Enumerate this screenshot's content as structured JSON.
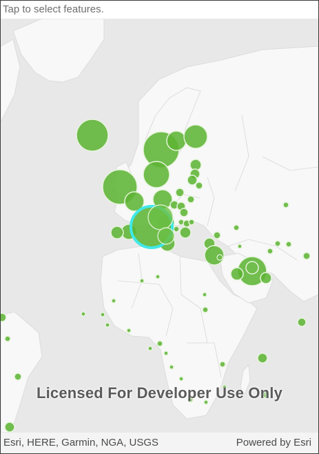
{
  "status": {
    "instruction": "Tap to select features."
  },
  "map": {
    "basemap": "light-gray-canvas",
    "watermark": "Licensed For Developer Use Only",
    "attribution": "Esri, HERE, Garmin, NGA, USGS",
    "powered_by": "Powered by Esri",
    "colors": {
      "water": "#e8e8e9",
      "land": "#f8f8f8",
      "border": "#d2d2d2",
      "feature_fill": "#5db434",
      "feature_stroke": "#e8f5de",
      "selection": "#40e8e8"
    }
  },
  "features": [
    {
      "name": "feature-iceland"
    },
    {
      "name": "feature-norway-large"
    },
    {
      "name": "feature-sweden"
    },
    {
      "name": "feature-finland"
    },
    {
      "name": "feature-uk"
    },
    {
      "name": "feature-netherlands"
    },
    {
      "name": "feature-germany"
    },
    {
      "name": "feature-france-selected"
    },
    {
      "name": "feature-spain"
    },
    {
      "name": "feature-italy"
    },
    {
      "name": "feature-turkey"
    },
    {
      "name": "feature-saudi-arabia"
    },
    {
      "name": "feature-africa-points"
    }
  ]
}
